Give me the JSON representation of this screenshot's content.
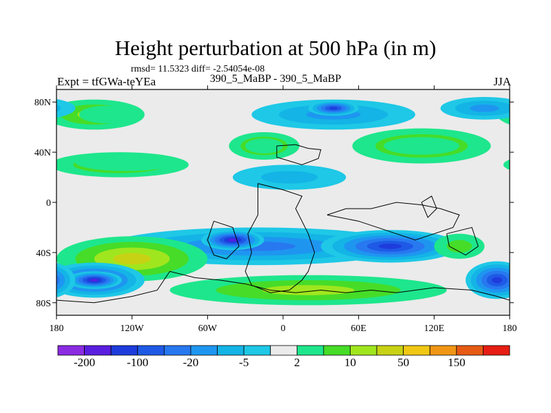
{
  "title": "Height perturbation at 500 hPa (in m)",
  "stats_line": "rmsd= 11.5323 diff= -2.54054e-08",
  "left_label": "Expt = tfGWa-teYEa",
  "center_label": "390_5_MaBP - 390_5_MaBP",
  "right_label": "JJA",
  "lat_ticks": [
    {
      "label": "80N",
      "lat": 80
    },
    {
      "label": "40N",
      "lat": 40
    },
    {
      "label": "0",
      "lat": 0
    },
    {
      "label": "40S",
      "lat": -40
    },
    {
      "label": "80S",
      "lat": -80
    }
  ],
  "lon_ticks": [
    {
      "label": "180",
      "lon": -180
    },
    {
      "label": "120W",
      "lon": -120
    },
    {
      "label": "60W",
      "lon": -60
    },
    {
      "label": "0",
      "lon": 0
    },
    {
      "label": "60E",
      "lon": 60
    },
    {
      "label": "120E",
      "lon": 120
    },
    {
      "label": "180",
      "lon": 180
    }
  ],
  "colorbar": {
    "colors": [
      "#8b2be2",
      "#5a1ee0",
      "#1e3cdc",
      "#1e5ae6",
      "#2878f0",
      "#1e96f0",
      "#14b4e6",
      "#1ec8e6",
      "#ebebeb",
      "#1ee68c",
      "#46dc28",
      "#a0e61e",
      "#c8d214",
      "#f0c814",
      "#f09614",
      "#e65a14",
      "#e61e14"
    ],
    "labels": [
      {
        "text": "-200",
        "boundary": 1
      },
      {
        "text": "-100",
        "boundary": 3
      },
      {
        "text": "-20",
        "boundary": 5
      },
      {
        "text": "-5",
        "boundary": 7
      },
      {
        "text": "2",
        "boundary": 9
      },
      {
        "text": "10",
        "boundary": 11
      },
      {
        "text": "50",
        "boundary": 13
      },
      {
        "text": "150",
        "boundary": 15
      }
    ]
  },
  "map": {
    "lon_range": [
      -180,
      180
    ],
    "lat_range": [
      -90,
      90
    ],
    "background_color": "#ebebeb",
    "fields": [
      {
        "lon": -150,
        "lat": 70,
        "rx": 40,
        "ry": 12,
        "level": 3
      },
      {
        "lon": -140,
        "lat": 70,
        "rx": 22,
        "ry": 7,
        "level": 1
      },
      {
        "lon": -130,
        "lat": 30,
        "rx": 55,
        "ry": 10,
        "level": 3
      },
      {
        "lon": -125,
        "lat": 32,
        "rx": 40,
        "ry": 7,
        "level": 1
      },
      {
        "lon": -15,
        "lat": 45,
        "rx": 28,
        "ry": 11,
        "level": 3
      },
      {
        "lon": -15,
        "lat": 45,
        "rx": 15,
        "ry": 6,
        "level": 1
      },
      {
        "lon": 5,
        "lat": 20,
        "rx": 45,
        "ry": 10,
        "level": -2
      },
      {
        "lon": 40,
        "lat": 70,
        "rx": 65,
        "ry": 12,
        "level": -3
      },
      {
        "lon": 40,
        "lat": 75,
        "rx": 20,
        "ry": 6,
        "level": -6
      },
      {
        "lon": 110,
        "lat": 45,
        "rx": 55,
        "ry": 14,
        "level": 3
      },
      {
        "lon": 110,
        "lat": 45,
        "rx": 30,
        "ry": 7,
        "level": 1
      },
      {
        "lon": 160,
        "lat": 75,
        "rx": 35,
        "ry": 9,
        "level": -3
      },
      {
        "lon": -20,
        "lat": -35,
        "rx": 120,
        "ry": 15,
        "level": -4
      },
      {
        "lon": -40,
        "lat": -30,
        "rx": 25,
        "ry": 8,
        "level": -7
      },
      {
        "lon": 85,
        "lat": -35,
        "rx": 55,
        "ry": 13,
        "level": -6
      },
      {
        "lon": -120,
        "lat": -45,
        "rx": 60,
        "ry": 18,
        "level": 4
      },
      {
        "lon": 20,
        "lat": -70,
        "rx": 110,
        "ry": 12,
        "level": 3
      },
      {
        "lon": -150,
        "lat": -62,
        "rx": 40,
        "ry": 14,
        "level": -6
      },
      {
        "lon": -150,
        "lat": -62,
        "rx": 22,
        "ry": 7,
        "level": -7
      },
      {
        "lon": 170,
        "lat": -62,
        "rx": 25,
        "ry": 15,
        "level": -6
      },
      {
        "lon": 140,
        "lat": -35,
        "rx": 20,
        "ry": 10,
        "level": 2
      }
    ]
  }
}
